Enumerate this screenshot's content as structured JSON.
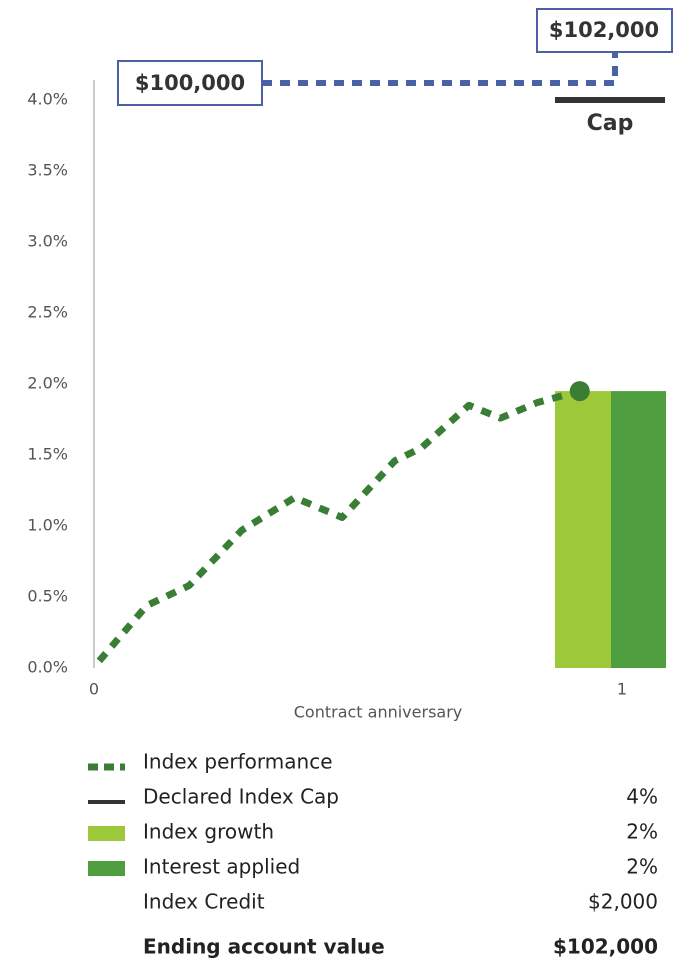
{
  "chart_data": {
    "type": "line",
    "ylim": [
      0,
      4
    ],
    "yticks": [
      {
        "value": 0,
        "label": "0.0%"
      },
      {
        "value": 0.5,
        "label": "0.5%"
      },
      {
        "value": 1,
        "label": "1.0%"
      },
      {
        "value": 1.5,
        "label": "1.5%"
      },
      {
        "value": 2,
        "label": "2.0%"
      },
      {
        "value": 2.5,
        "label": "2.5%"
      },
      {
        "value": 3,
        "label": "3.0%"
      },
      {
        "value": 3.5,
        "label": "3.5%"
      },
      {
        "value": 4,
        "label": "4.0%"
      }
    ],
    "xlim": [
      0,
      1
    ],
    "xticks": [
      0,
      1
    ],
    "xlabel": "Contract anniversary",
    "series": [
      {
        "name": "Index performance",
        "color": "#3a7d35",
        "x": [
          0.01,
          0.1,
          0.18,
          0.28,
          0.38,
          0.47,
          0.57,
          0.62,
          0.71,
          0.77,
          0.84,
          0.92
        ],
        "values": [
          0.05,
          0.44,
          0.58,
          0.97,
          1.2,
          1.06,
          1.46,
          1.55,
          1.85,
          1.76,
          1.87,
          1.95
        ]
      },
      {
        "name": "Declared Index Cap",
        "color": "#333333",
        "values": [
          4
        ],
        "label": "Cap",
        "legend_value": "4%"
      },
      {
        "name": "Index growth",
        "color": "#9dc83a",
        "values": [
          1.95
        ],
        "legend_value": "2%"
      },
      {
        "name": "Interest applied",
        "color": "#4e9e40",
        "values": [
          1.95
        ],
        "legend_value": "2%"
      }
    ],
    "summary": [
      {
        "name": "Index Credit",
        "value": "$2,000"
      },
      {
        "name": "Ending account value",
        "value": "$102,000"
      }
    ],
    "annotations": {
      "start": "$100,000",
      "end": "$102,000",
      "color": "#4a62a5"
    }
  }
}
